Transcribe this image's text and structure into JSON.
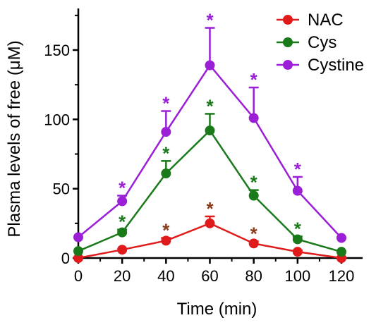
{
  "chart_data": {
    "type": "line",
    "title": "",
    "xlabel": "Time (min)",
    "ylabel": "Plasma levels of free (μM)",
    "x": [
      0,
      20,
      40,
      60,
      80,
      100,
      120
    ],
    "xticks": [
      0,
      20,
      40,
      60,
      80,
      100,
      120
    ],
    "yticks": [
      0,
      50,
      100,
      150
    ],
    "xlim": [
      0,
      120
    ],
    "ylim": [
      0,
      180
    ],
    "grid": false,
    "legend_position": "top-right",
    "significance_marker": "*",
    "series": [
      {
        "name": "NAC",
        "color": "#e01a1a",
        "star_color": "#8b3a1a",
        "values": [
          0,
          6,
          12.5,
          25,
          10.5,
          4.5,
          0
        ],
        "error_plus": [
          0,
          0,
          2,
          5,
          1.5,
          1,
          0
        ],
        "significant": [
          false,
          false,
          true,
          true,
          true,
          false,
          false
        ]
      },
      {
        "name": "Cys",
        "color": "#1a7a1a",
        "star_color": "#1a7a1a",
        "values": [
          5,
          18.5,
          61,
          92,
          45,
          13.5,
          4.5
        ],
        "error_plus": [
          0,
          2,
          9,
          12,
          4,
          2,
          0
        ],
        "significant": [
          false,
          true,
          true,
          true,
          true,
          true,
          false
        ]
      },
      {
        "name": "Cystine",
        "color": "#9b1fd6",
        "star_color": "#9b1fd6",
        "values": [
          15,
          41,
          91,
          139,
          101,
          48.5,
          14.5
        ],
        "error_plus": [
          0,
          4,
          15,
          27,
          22,
          10,
          0
        ],
        "significant": [
          false,
          true,
          true,
          true,
          true,
          true,
          false
        ]
      }
    ]
  }
}
